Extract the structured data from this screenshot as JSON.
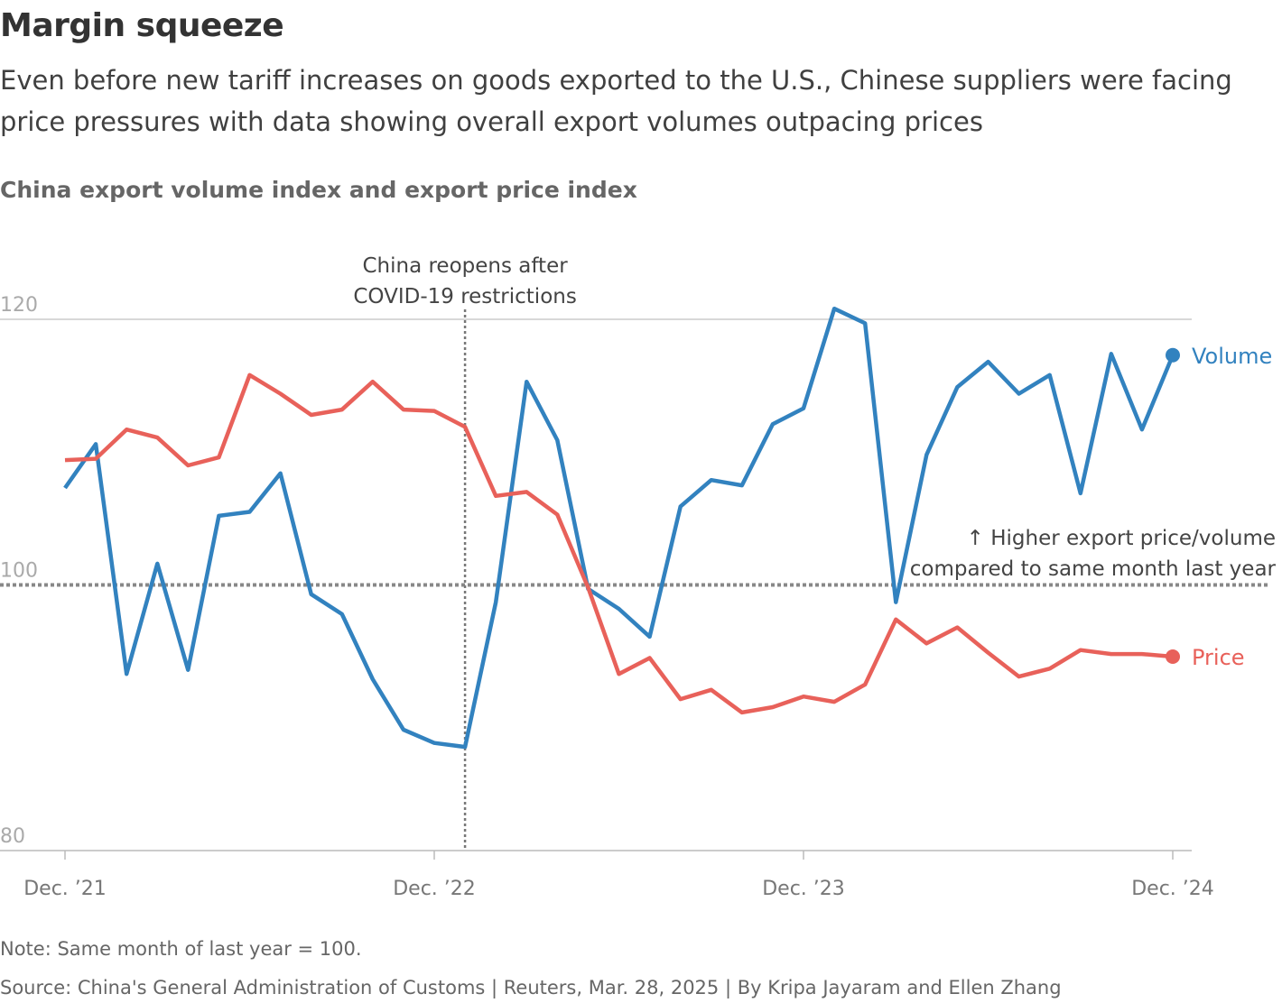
{
  "header": {
    "title": "Margin squeeze",
    "subtitle": "Even before new tariff increases on goods exported to the U.S., Chinese suppliers were facing price pressures with data showing overall export volumes outpacing prices"
  },
  "chart_data": {
    "type": "line",
    "title": "China export volume index and export price index",
    "xlabel": "",
    "ylabel": "",
    "ylim": [
      80,
      120
    ],
    "yticks": [
      "120",
      "100",
      "80"
    ],
    "xtick_labels": [
      "Dec. ’21",
      "Dec. ’22",
      "Dec. ’23",
      "Dec. ’24"
    ],
    "grid": true,
    "x": [
      "2021-12",
      "2022-01",
      "2022-02",
      "2022-03",
      "2022-04",
      "2022-05",
      "2022-06",
      "2022-07",
      "2022-08",
      "2022-09",
      "2022-10",
      "2022-11",
      "2022-12",
      "2023-01",
      "2023-02",
      "2023-03",
      "2023-04",
      "2023-05",
      "2023-06",
      "2023-07",
      "2023-08",
      "2023-09",
      "2023-10",
      "2023-11",
      "2023-12",
      "2024-01",
      "2024-02",
      "2024-03",
      "2024-04",
      "2024-05",
      "2024-06",
      "2024-07",
      "2024-08",
      "2024-09",
      "2024-10",
      "2024-11",
      "2024-12"
    ],
    "series": [
      {
        "name": "Volume",
        "color": "#3282bf",
        "values": [
          107.3,
          110.6,
          93.3,
          101.6,
          93.6,
          105.2,
          105.5,
          108.4,
          99.3,
          97.8,
          92.9,
          89.1,
          88.1,
          87.8,
          98.7,
          115.3,
          110.9,
          99.7,
          98.2,
          96.1,
          105.9,
          107.9,
          107.5,
          112.1,
          113.3,
          120.8,
          119.7,
          98.7,
          109.8,
          114.9,
          116.8,
          114.4,
          115.8,
          106.9,
          117.4,
          111.7,
          117.3
        ]
      },
      {
        "name": "Price",
        "color": "#e8615a",
        "values": [
          109.4,
          109.5,
          111.7,
          111.1,
          109.0,
          109.6,
          115.8,
          114.4,
          112.8,
          113.2,
          115.3,
          113.2,
          113.1,
          111.9,
          106.7,
          107.0,
          105.3,
          99.8,
          93.3,
          94.5,
          91.4,
          92.1,
          90.4,
          90.8,
          91.6,
          91.2,
          92.5,
          97.4,
          95.6,
          96.8,
          94.9,
          93.1,
          93.7,
          95.1,
          94.8,
          94.8,
          94.6
        ]
      }
    ],
    "annotations": [
      {
        "text": [
          "China reopens after",
          "COVID-19 restrictions"
        ],
        "x": "2023-01"
      },
      {
        "text": [
          "↑ Higher export price/volume",
          "compared to same month last year"
        ],
        "y": 100
      }
    ]
  },
  "footer": {
    "note": "Note: Same month of last year = 100.",
    "source": "Source: China's General Administration of Customs | Reuters, Mar. 28, 2025 | By Kripa Jayaram and Ellen Zhang"
  }
}
